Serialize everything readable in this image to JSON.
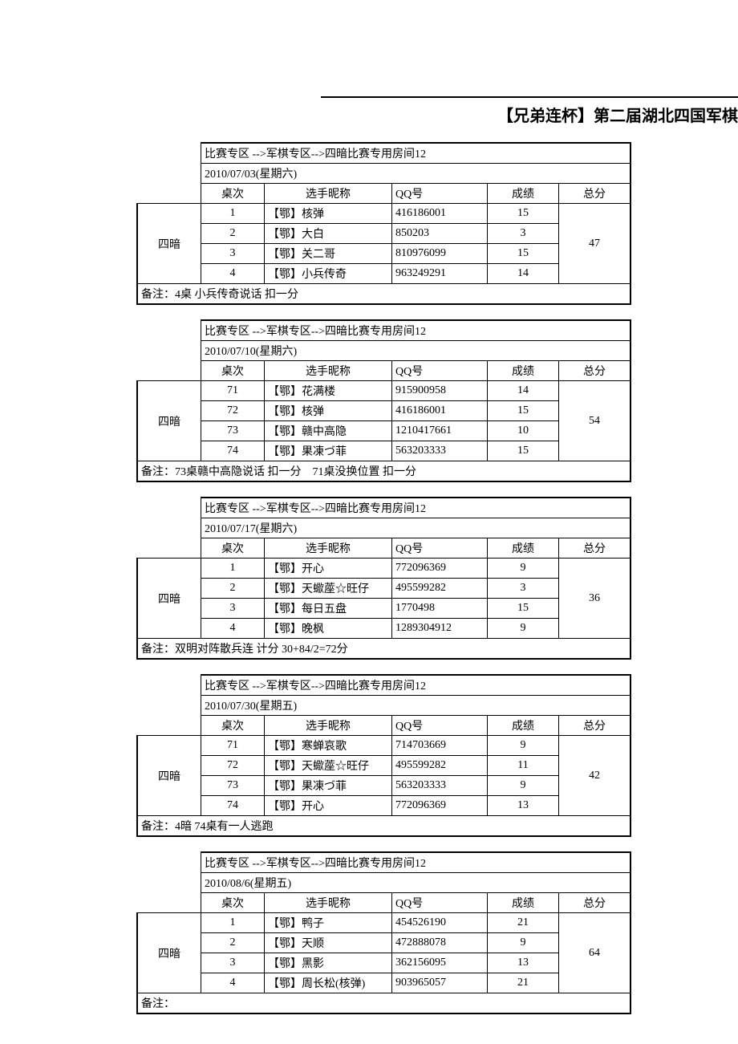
{
  "page_title": "【兄弟连杯】第二届湖北四国军棋联赛",
  "headers": {
    "seat": "桌次",
    "name": "选手昵称",
    "qq": "QQ号",
    "score": "成绩",
    "total": "总分"
  },
  "blocks": [
    {
      "room": "比赛专区 -->军棋专区-->四暗比赛专用房间12",
      "date": "2010/07/03(星期六)",
      "mode": "四暗",
      "rows": [
        {
          "seat": "1",
          "name": "【鄂】核弹",
          "qq": "416186001",
          "score": "15"
        },
        {
          "seat": "2",
          "name": "【鄂】大白",
          "qq": "850203",
          "score": "3"
        },
        {
          "seat": "3",
          "name": "【鄂】关二哥",
          "qq": "810976099",
          "score": "15"
        },
        {
          "seat": "4",
          "name": "【鄂】小兵传奇",
          "qq": "963249291",
          "score": "14"
        }
      ],
      "total": "47",
      "note": "备注：4桌 小兵传奇说话 扣一分"
    },
    {
      "room": "比赛专区 -->军棋专区-->四暗比赛专用房间12",
      "date": "2010/07/10(星期六)",
      "mode": "四暗",
      "rows": [
        {
          "seat": "71",
          "name": "【鄂】花满楼",
          "qq": "915900958",
          "score": "14"
        },
        {
          "seat": "72",
          "name": "【鄂】核弹",
          "qq": "416186001",
          "score": "15"
        },
        {
          "seat": "73",
          "name": "【鄂】赣中高隐",
          "qq": "1210417661",
          "score": "10"
        },
        {
          "seat": "74",
          "name": "【鄂】果凍づ菲",
          "qq": "563203333",
          "score": "15"
        }
      ],
      "total": "54",
      "note": "备注：73桌赣中高隐说话 扣一分　71桌没换位置 扣一分"
    },
    {
      "room": "比赛专区 -->军棋专区-->四暗比赛专用房间12",
      "date": "2010/07/17(星期六)",
      "mode": "四暗",
      "rows": [
        {
          "seat": "1",
          "name": "【鄂】开心",
          "qq": "772096369",
          "score": "9"
        },
        {
          "seat": "2",
          "name": "【鄂】天蠍蓙☆旺仔",
          "qq": "495599282",
          "score": "3"
        },
        {
          "seat": "3",
          "name": "【鄂】每日五盘",
          "qq": "1770498",
          "score": "15"
        },
        {
          "seat": "4",
          "name": "【鄂】晚枫",
          "qq": "1289304912",
          "score": "9"
        }
      ],
      "total": "36",
      "note": "备注：双明对阵散兵连 计分 30+84/2=72分"
    },
    {
      "room": "比赛专区 -->军棋专区-->四暗比赛专用房间12",
      "date": "2010/07/30(星期五)",
      "mode": "四暗",
      "rows": [
        {
          "seat": "71",
          "name": "【鄂】寒蝉哀歌",
          "qq": "714703669",
          "score": "9"
        },
        {
          "seat": "72",
          "name": "【鄂】天蠍蓙☆旺仔",
          "qq": "495599282",
          "score": "11"
        },
        {
          "seat": "73",
          "name": "【鄂】果凍づ菲",
          "qq": "563203333",
          "score": "9"
        },
        {
          "seat": "74",
          "name": "【鄂】开心",
          "qq": "772096369",
          "score": "13"
        }
      ],
      "total": "42",
      "note": "备注：4暗 74桌有一人逃跑"
    },
    {
      "room": "比赛专区 -->军棋专区-->四暗比赛专用房间12",
      "date": "2010/08/6(星期五)",
      "mode": "四暗",
      "rows": [
        {
          "seat": "1",
          "name": "【鄂】鸭子",
          "qq": "454526190",
          "score": "21"
        },
        {
          "seat": "2",
          "name": "【鄂】天顺",
          "qq": "472888078",
          "score": "9"
        },
        {
          "seat": "3",
          "name": "【鄂】黑影",
          "qq": "362156095",
          "score": "13"
        },
        {
          "seat": "4",
          "name": "【鄂】周长松(核弹)",
          "qq": "903965057",
          "score": "21"
        }
      ],
      "total": "64",
      "note": "备注："
    }
  ]
}
